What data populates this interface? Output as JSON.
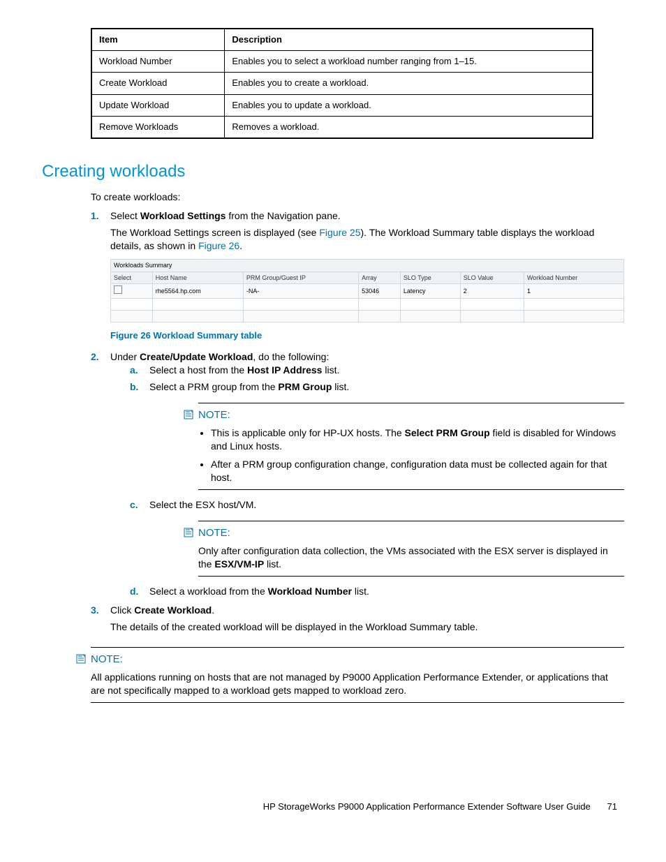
{
  "table": {
    "headers": [
      "Item",
      "Description"
    ],
    "rows": [
      [
        "Workload Number",
        "Enables you to select a workload number ranging from 1–15."
      ],
      [
        "Create Workload",
        "Enables you to create a workload."
      ],
      [
        "Update Workload",
        "Enables you to update a workload."
      ],
      [
        "Remove Workloads",
        "Removes a workload."
      ]
    ]
  },
  "heading": "Creating workloads",
  "intro": "To create workloads:",
  "step1": {
    "num": "1.",
    "text_a": "Select ",
    "bold_a": "Workload Settings",
    "text_b": " from the Navigation pane.",
    "cont_a": "The Workload Settings screen is displayed (see ",
    "link_a": "Figure 25",
    "cont_b": "). The Workload Summary table displays the workload details, as shown in ",
    "link_b": "Figure 26",
    "cont_c": "."
  },
  "summary": {
    "title": "Workloads Summary",
    "headers": [
      "Select",
      "Host Name",
      "PRM Group/Guest IP",
      "Array",
      "SLO Type",
      "SLO Value",
      "Workload Number"
    ],
    "row": [
      "",
      "rhe5564.hp.com",
      "-NA-",
      "53046",
      "Latency",
      "2",
      "1"
    ]
  },
  "figure_caption": "Figure 26 Workload Summary table",
  "step2": {
    "num": "2.",
    "text_a": "Under ",
    "bold_a": "Create/Update Workload",
    "text_b": ", do the following:",
    "a": {
      "letter": "a.",
      "text_a": "Select a host from the ",
      "bold": "Host IP Address",
      "text_b": " list."
    },
    "b": {
      "letter": "b.",
      "text_a": "Select a PRM group from the ",
      "bold": "PRM Group",
      "text_b": " list."
    },
    "c": {
      "letter": "c.",
      "text": "Select the ESX host/VM."
    },
    "d": {
      "letter": "d.",
      "text_a": "Select a workload from the ",
      "bold": "Workload Number",
      "text_b": " list."
    }
  },
  "note1": {
    "label": "NOTE:",
    "b1_a": "This is applicable only for HP-UX hosts. The ",
    "b1_bold": "Select PRM Group",
    "b1_b": " field is disabled for Windows and Linux hosts.",
    "b2": "After a PRM group configuration change, configuration data must be collected again for that host."
  },
  "note2": {
    "label": "NOTE:",
    "text_a": "Only after configuration data collection, the VMs associated with the ESX server is displayed in the ",
    "bold": "ESX/VM-IP",
    "text_b": " list."
  },
  "step3": {
    "num": "3.",
    "text_a": "Click ",
    "bold": "Create Workload",
    "text_b": ".",
    "cont": "The details of the created workload will be displayed in the Workload Summary table."
  },
  "note3": {
    "label": "NOTE:",
    "text": "All applications running on hosts that are not managed by P9000 Application Performance Extender, or applications that are not specifically mapped to a workload gets mapped to workload zero."
  },
  "footer": {
    "title": "HP StorageWorks P9000 Application Performance Extender Software User Guide",
    "page": "71"
  }
}
